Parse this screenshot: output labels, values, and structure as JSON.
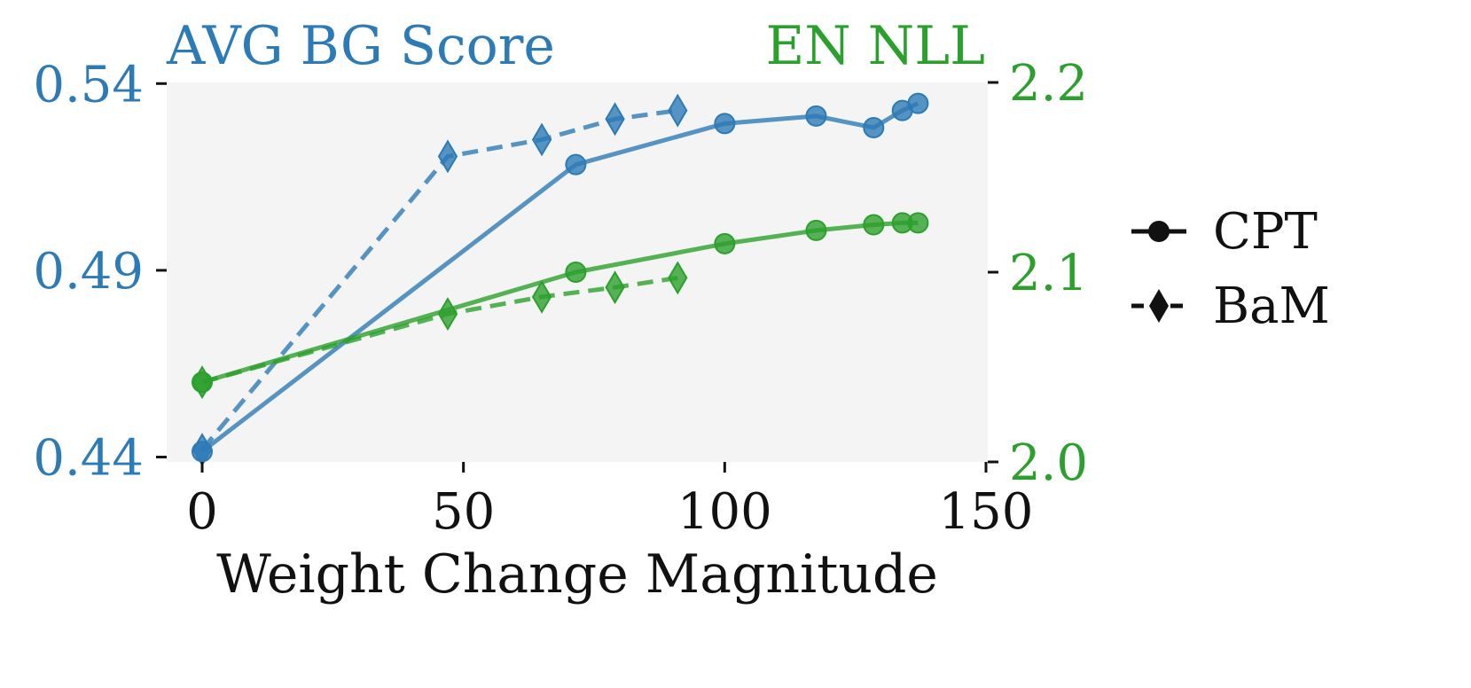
{
  "chart_data": {
    "type": "line",
    "xlabel": "Weight Change Magnitude",
    "xlim": [
      -7,
      150
    ],
    "xticks": [
      0,
      50,
      100,
      150
    ],
    "left_axis": {
      "title": "AVG BG Score",
      "color": "#2d7bb6",
      "ylim": [
        0.4387,
        0.5403
      ],
      "ticks": [
        "0.44",
        "0.49",
        "0.54"
      ],
      "tick_values": [
        0.44,
        0.49,
        0.54
      ]
    },
    "right_axis": {
      "title": "EN NLL",
      "color": "#2ca02c",
      "ylim": [
        2.0,
        2.2
      ],
      "ticks": [
        "2.0",
        "2.1",
        "2.2"
      ],
      "tick_values": [
        2.0,
        2.1,
        2.2
      ]
    },
    "plot_background": "#f4f4f4",
    "legend": {
      "placement": "right",
      "entries": [
        {
          "label": "CPT",
          "marker": "circle",
          "linestyle": "solid"
        },
        {
          "label": "BaM",
          "marker": "diamond",
          "linestyle": "dashed"
        }
      ]
    },
    "series": [
      {
        "axis": "left",
        "method": "CPT",
        "marker": "circle",
        "linestyle": "solid",
        "color": "#2d7bb6",
        "x": [
          0,
          71.5,
          100,
          117.5,
          128.5,
          134,
          137
        ],
        "y": [
          0.4415,
          0.5183,
          0.5293,
          0.5313,
          0.5282,
          0.5328,
          0.5347
        ]
      },
      {
        "axis": "left",
        "method": "BaM",
        "marker": "diamond",
        "linestyle": "dashed",
        "color": "#2d7bb6",
        "x": [
          0,
          47,
          65,
          79,
          91
        ],
        "y": [
          0.442,
          0.5205,
          0.525,
          0.5305,
          0.5328
        ]
      },
      {
        "axis": "right",
        "method": "CPT",
        "marker": "circle",
        "linestyle": "solid",
        "color": "#2ca02c",
        "x": [
          0,
          71.5,
          100,
          117.5,
          128.5,
          134,
          137
        ],
        "y": [
          2.042,
          2.1,
          2.115,
          2.122,
          2.125,
          2.126,
          2.126
        ]
      },
      {
        "axis": "right",
        "method": "BaM",
        "marker": "diamond",
        "linestyle": "dashed",
        "color": "#2ca02c",
        "x": [
          0,
          47,
          65,
          79,
          91
        ],
        "y": [
          2.042,
          2.078,
          2.087,
          2.092,
          2.097
        ]
      }
    ]
  }
}
